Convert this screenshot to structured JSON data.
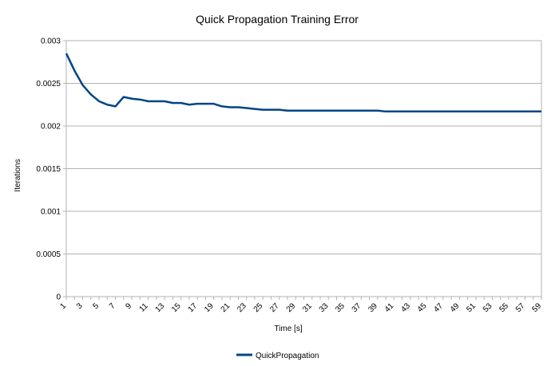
{
  "chart_data": {
    "type": "line",
    "title": "Quick Propagation Training Error",
    "xlabel": "Time [s]",
    "ylabel": "Iterations",
    "ylim": [
      0,
      0.003
    ],
    "y_ticks": [
      "0",
      "0.0005",
      "0.001",
      "0.0015",
      "0.002",
      "0.0025",
      "0.003"
    ],
    "y_tick_values": [
      0,
      0.0005,
      0.001,
      0.0015,
      0.002,
      0.0025,
      0.003
    ],
    "x_tick_labels": [
      "1",
      "3",
      "5",
      "7",
      "9",
      "11",
      "13",
      "15",
      "17",
      "19",
      "21",
      "23",
      "25",
      "27",
      "29",
      "31",
      "33",
      "35",
      "37",
      "39",
      "41",
      "43",
      "45",
      "47",
      "49",
      "51",
      "53",
      "55",
      "57",
      "59"
    ],
    "x": [
      1,
      2,
      3,
      4,
      5,
      6,
      7,
      8,
      9,
      10,
      11,
      12,
      13,
      14,
      15,
      16,
      17,
      18,
      19,
      20,
      21,
      22,
      23,
      24,
      25,
      26,
      27,
      28,
      29,
      30,
      31,
      32,
      33,
      34,
      35,
      36,
      37,
      38,
      39,
      40,
      41,
      42,
      43,
      44,
      45,
      46,
      47,
      48,
      49,
      50,
      51,
      52,
      53,
      54,
      55,
      56,
      57,
      58,
      59
    ],
    "grid": true,
    "legend_position": "bottom",
    "series": [
      {
        "name": "QuickPropagation",
        "color": "#004586",
        "values": [
          0.00285,
          0.00265,
          0.00248,
          0.00237,
          0.00229,
          0.00225,
          0.00223,
          0.00234,
          0.00232,
          0.00231,
          0.00229,
          0.00229,
          0.00229,
          0.00227,
          0.00227,
          0.00225,
          0.00226,
          0.00226,
          0.00226,
          0.00223,
          0.00222,
          0.00222,
          0.00221,
          0.0022,
          0.00219,
          0.00219,
          0.00219,
          0.00218,
          0.00218,
          0.00218,
          0.00218,
          0.00218,
          0.00218,
          0.00218,
          0.00218,
          0.00218,
          0.00218,
          0.00218,
          0.00218,
          0.00217,
          0.00217,
          0.00217,
          0.00217,
          0.00217,
          0.00217,
          0.00217,
          0.00217,
          0.00217,
          0.00217,
          0.00217,
          0.00217,
          0.00217,
          0.00217,
          0.00217,
          0.00217,
          0.00217,
          0.00217,
          0.00217,
          0.00217
        ]
      }
    ]
  }
}
